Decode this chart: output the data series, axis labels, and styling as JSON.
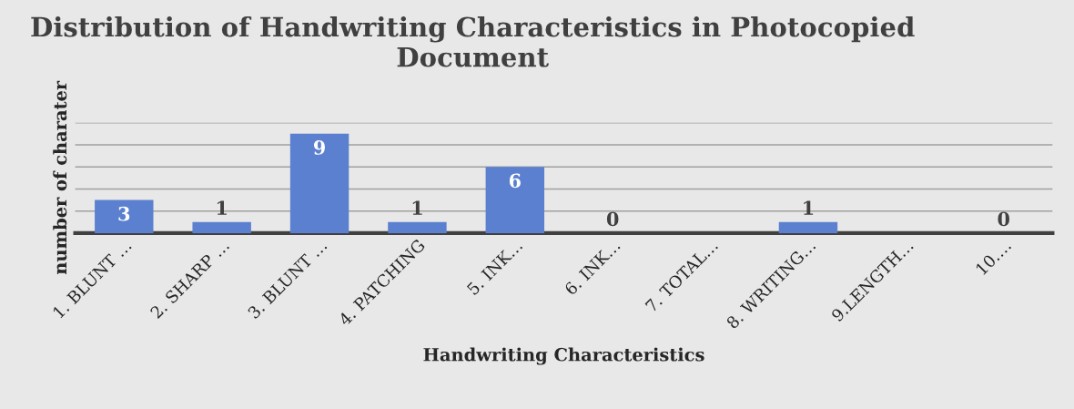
{
  "chart_data": {
    "type": "bar",
    "title": "Distribution of Handwriting Characteristics in Photocopied Document",
    "xlabel": "Handwriting Characteristics",
    "ylabel": "number of charater",
    "categories": [
      "1. BLUNT …",
      "2. SHARP …",
      "3. BLUNT …",
      "4. PATCHING",
      "5. INK…",
      "6. INK…",
      "7. TOTAL…",
      "8. WRITING…",
      "9.LENGTH…",
      "10.…"
    ],
    "values": [
      3,
      1,
      9,
      1,
      6,
      0,
      null,
      1,
      null,
      0
    ],
    "value_labels": [
      "3",
      "1",
      "9",
      "1",
      "6",
      "0",
      null,
      "1",
      null,
      "0"
    ],
    "color": "#5b80cf",
    "ylim": [
      0,
      10
    ],
    "yticks": [
      {
        "value": 0,
        "label": null
      },
      {
        "value": 2,
        "label": null
      },
      {
        "value": 4,
        "label": null
      },
      {
        "value": 6,
        "label": null
      },
      {
        "value": 8,
        "label": null
      },
      {
        "value": 10,
        "label": null
      }
    ],
    "grid": "y",
    "tick_labels": "x"
  }
}
